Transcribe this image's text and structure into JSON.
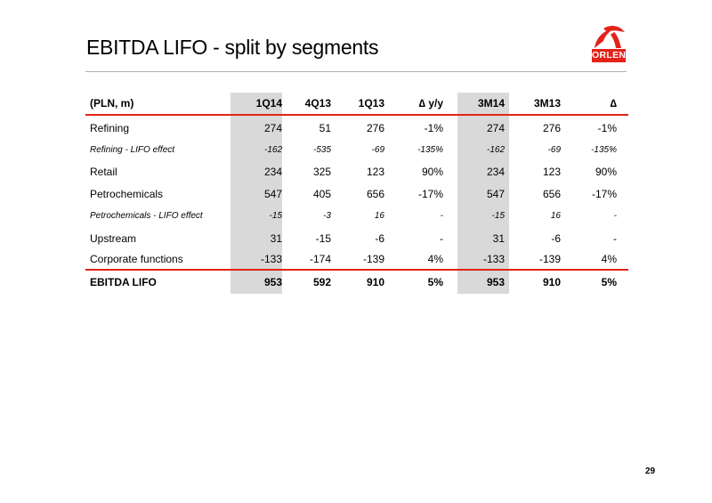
{
  "slide": {
    "title": "EBITDA LIFO - split by segments",
    "page_number": "29",
    "logo_text": "ORLEN"
  },
  "table": {
    "headers": [
      "(PLN, m)",
      "1Q14",
      "4Q13",
      "1Q13",
      "∆ y/y",
      "3M14",
      "3M13",
      "∆"
    ],
    "rows": [
      {
        "label": "Refining",
        "values": [
          "274",
          "51",
          "276",
          "-1%",
          "274",
          "276",
          "-1%"
        ]
      },
      {
        "label": "Refining - LIFO effect",
        "values": [
          "-162",
          "-535",
          "-69",
          "-135%",
          "-162",
          "-69",
          "-135%"
        ]
      },
      {
        "label": "Retail",
        "values": [
          "234",
          "325",
          "123",
          "90%",
          "234",
          "123",
          "90%"
        ]
      },
      {
        "label": "Petrochemicals",
        "values": [
          "547",
          "405",
          "656",
          "-17%",
          "547",
          "656",
          "-17%"
        ]
      },
      {
        "label": "Petrochemicals - LIFO effect",
        "values": [
          "-15",
          "-3",
          "16",
          "-",
          "-15",
          "16",
          "-"
        ]
      },
      {
        "label": "Upstream",
        "values": [
          "31",
          "-15",
          "-6",
          "-",
          "31",
          "-6",
          "-"
        ]
      },
      {
        "label": "Corporate functions",
        "values": [
          "-133",
          "-174",
          "-139",
          "4%",
          "-133",
          "-139",
          "4%"
        ]
      }
    ],
    "total": {
      "label": "EBITDA LIFO",
      "values": [
        "953",
        "592",
        "910",
        "5%",
        "953",
        "910",
        "5%"
      ]
    }
  },
  "colors": {
    "accent": "#e2231a",
    "highlight_column": "#d9d9d9"
  }
}
